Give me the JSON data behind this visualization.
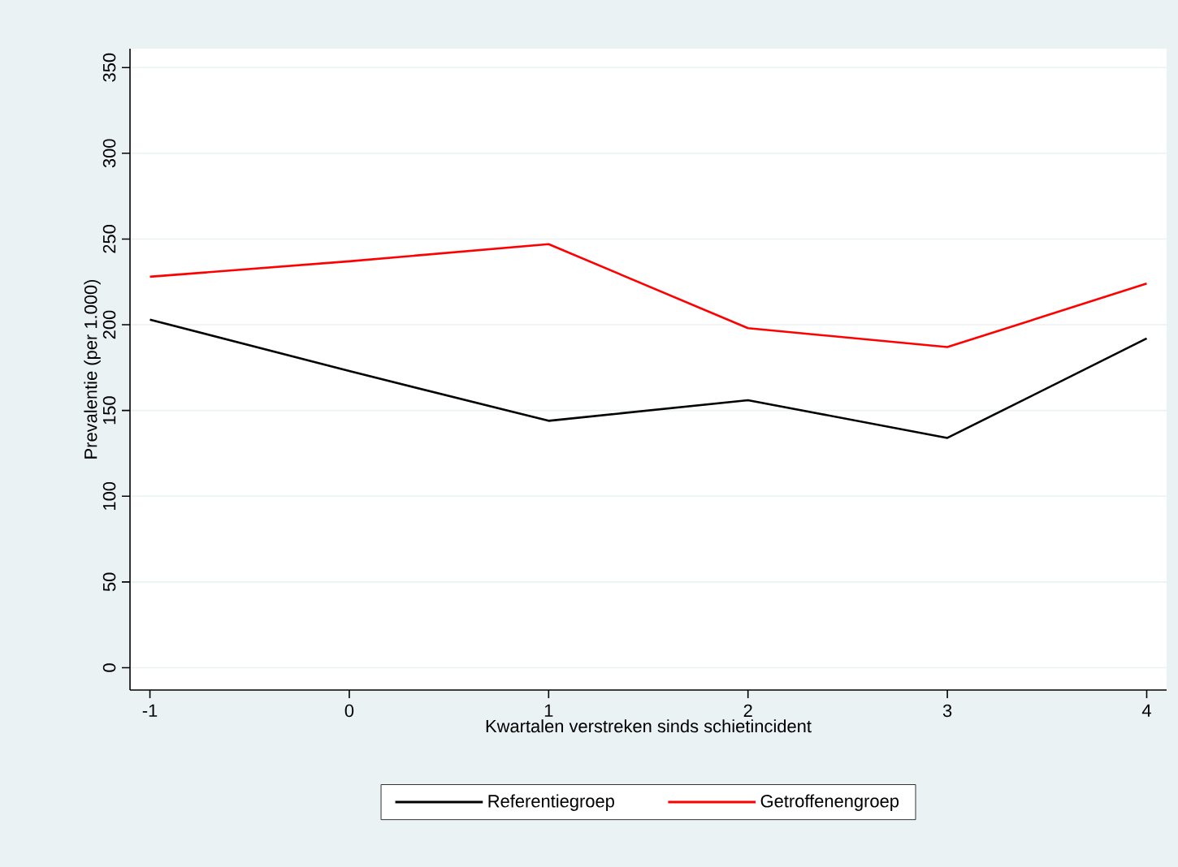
{
  "chart_data": {
    "type": "line",
    "xlabel": "Kwartalen verstreken sinds schietincident",
    "ylabel": "Prevalentie (per 1.000)",
    "x": [
      -1,
      0,
      1,
      2,
      3,
      4
    ],
    "series": [
      {
        "name": "Referentiegroep",
        "color": "#000000",
        "values": [
          203,
          173,
          144,
          156,
          134,
          192
        ]
      },
      {
        "name": "Getroffenengroep",
        "color": "#ff0000",
        "values": [
          228,
          237,
          247,
          198,
          187,
          224
        ]
      }
    ],
    "xlim": [
      -1.1,
      4.1
    ],
    "xticks": [
      -1,
      0,
      1,
      2,
      3,
      4
    ],
    "ylim": [
      -13,
      361
    ],
    "yticks": [
      0,
      50,
      100,
      150,
      200,
      250,
      300,
      350
    ],
    "grid": "y",
    "legend": "bottom",
    "marker": "none",
    "line_style": "solid"
  }
}
